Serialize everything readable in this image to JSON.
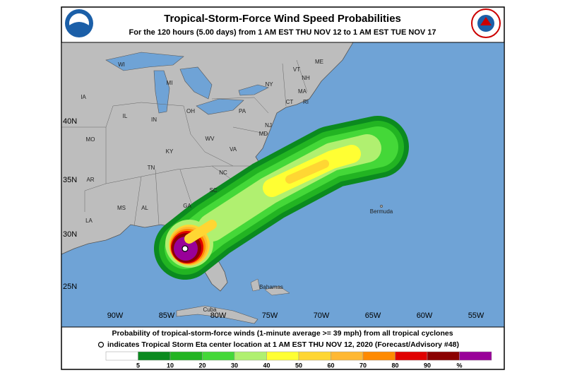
{
  "header": {
    "title": "Tropical-Storm-Force Wind Speed Probabilities",
    "subtitle": "For the 120 hours (5.00 days) from 1 AM EST THU NOV 12 to 1 AM EST TUE NOV 17"
  },
  "map": {
    "latitude_labels": [
      "40N",
      "35N",
      "30N",
      "25N"
    ],
    "longitude_labels": [
      "90W",
      "85W",
      "80W",
      "75W",
      "70W",
      "65W",
      "60W",
      "55W"
    ],
    "place_labels": [
      "WI",
      "MI",
      "NY",
      "VT",
      "NH",
      "ME",
      "MA",
      "CT",
      "RI",
      "IA",
      "IL",
      "IN",
      "OH",
      "PA",
      "NJ",
      "MO",
      "KY",
      "WV",
      "VA",
      "MD",
      "TN",
      "NC",
      "AR",
      "SC",
      "MS",
      "AL",
      "GA",
      "LA",
      "Bermuda",
      "Bahamas",
      "Cuba"
    ]
  },
  "footer": {
    "line1": "Probability of tropical-storm-force winds (1-minute average >= 39 mph) from all tropical cyclones",
    "line2": "indicates Tropical Storm Eta center location at 1 AM EST THU NOV 12, 2020 (Forecast/Advisory #48)"
  },
  "legend": {
    "labels": [
      5,
      10,
      20,
      30,
      40,
      50,
      60,
      70,
      80,
      90,
      "%"
    ],
    "colors": [
      "#ffffff",
      "#0b8a1f",
      "#22b422",
      "#44d838",
      "#b0f070",
      "#ffff33",
      "#ffd633",
      "#ffb833",
      "#ff8a00",
      "#e00000",
      "#8b0000",
      "#990099"
    ]
  }
}
